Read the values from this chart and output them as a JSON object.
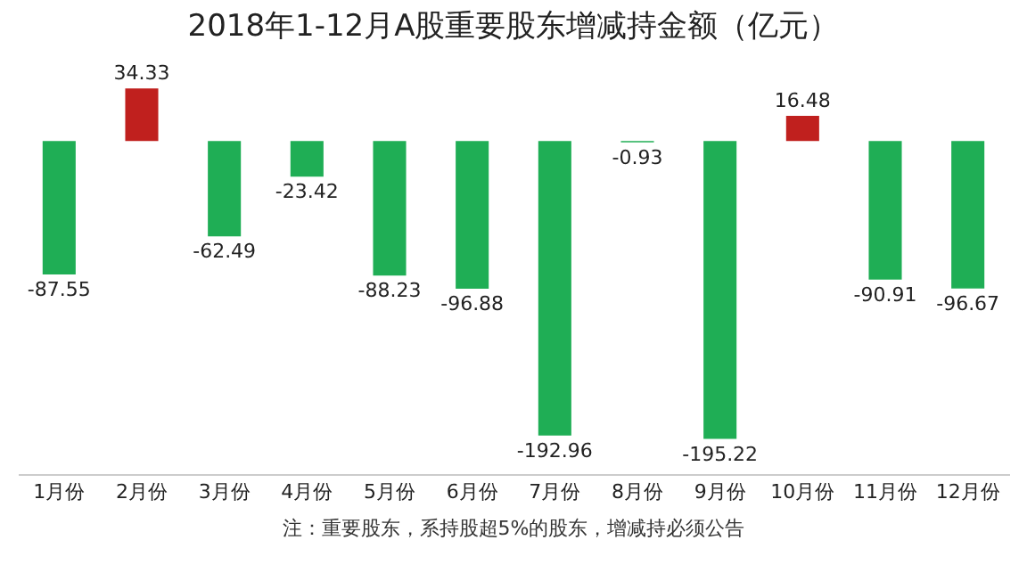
{
  "chart_data": {
    "type": "bar",
    "title": "2018年1-12月A股重要股东增减持金额（亿元）",
    "categories": [
      "1月份",
      "2月份",
      "3月份",
      "4月份",
      "5月份",
      "6月份",
      "7月份",
      "8月份",
      "9月份",
      "10月份",
      "11月份",
      "12月份"
    ],
    "values": [
      -87.55,
      34.33,
      -62.49,
      -23.42,
      -88.23,
      -96.88,
      -192.96,
      -0.93,
      -195.22,
      16.48,
      -90.91,
      -96.67
    ],
    "colors": [
      "#1fae55",
      "#c0201e",
      "#1fae55",
      "#1fae55",
      "#1fae55",
      "#1fae55",
      "#1fae55",
      "#1fae55",
      "#1fae55",
      "#c0201e",
      "#1fae55",
      "#1fae55"
    ],
    "data_labels": true,
    "annotations": [
      "注：重要股东，系持股超5%的股东，增减持必须公告"
    ]
  }
}
